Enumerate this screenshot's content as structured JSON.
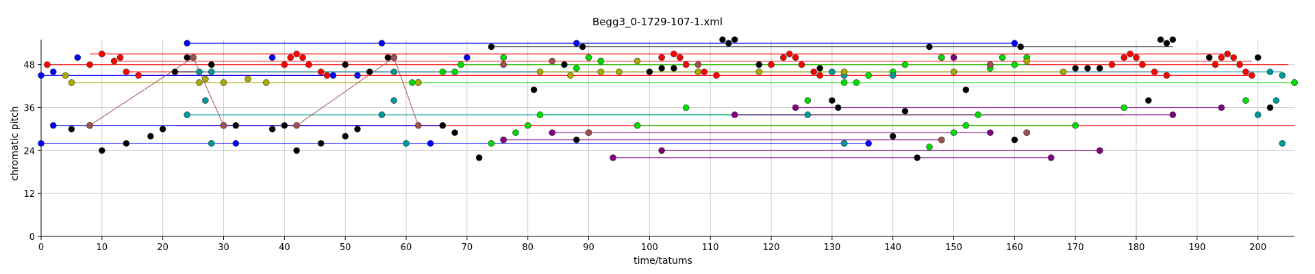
{
  "chart_data": {
    "type": "scatter",
    "title": "Begg3_0-1729-107-1.xml",
    "xlabel": "time/tatums",
    "ylabel": "chromatic pitch",
    "xlim": [
      0,
      206
    ],
    "ylim": [
      0,
      55
    ],
    "xticks": [
      0,
      10,
      20,
      30,
      40,
      50,
      60,
      70,
      80,
      90,
      100,
      110,
      120,
      130,
      140,
      150,
      160,
      170,
      180,
      190,
      200
    ],
    "yticks": [
      0,
      12,
      24,
      36,
      48
    ],
    "grid": true,
    "legend": "none",
    "series": [
      {
        "color": "#ff0000",
        "points": [
          [
            1,
            48
          ],
          [
            8,
            48
          ],
          [
            10,
            51
          ],
          [
            12,
            49
          ],
          [
            13,
            50
          ],
          [
            14,
            46
          ],
          [
            16,
            45
          ],
          [
            40,
            48
          ],
          [
            41,
            50
          ],
          [
            42,
            51
          ],
          [
            43,
            50
          ],
          [
            44,
            48
          ],
          [
            46,
            46
          ],
          [
            47,
            45
          ],
          [
            102,
            50
          ],
          [
            104,
            51
          ],
          [
            105,
            50
          ],
          [
            106,
            48
          ],
          [
            109,
            46
          ],
          [
            111,
            45
          ],
          [
            120,
            48
          ],
          [
            122,
            50
          ],
          [
            123,
            51
          ],
          [
            124,
            50
          ],
          [
            125,
            48
          ],
          [
            127,
            46
          ],
          [
            128,
            45
          ],
          [
            176,
            48
          ],
          [
            178,
            50
          ],
          [
            179,
            51
          ],
          [
            180,
            50
          ],
          [
            181,
            48
          ],
          [
            183,
            46
          ],
          [
            185,
            45
          ],
          [
            193,
            48
          ],
          [
            194,
            50
          ],
          [
            195,
            51
          ],
          [
            196,
            50
          ],
          [
            197,
            48
          ],
          [
            198,
            46
          ],
          [
            199,
            45
          ]
        ],
        "lines": [
          [
            1,
            48,
            205,
            48
          ],
          [
            8,
            51,
            195,
            51
          ],
          [
            12,
            49,
            199,
            49
          ],
          [
            14,
            46,
            185,
            46
          ],
          [
            16,
            45,
            199,
            45
          ],
          [
            22,
            31,
            206,
            31
          ]
        ]
      },
      {
        "color": "#0000ff",
        "points": [
          [
            0,
            45
          ],
          [
            2,
            46
          ],
          [
            6,
            50
          ],
          [
            2,
            31
          ],
          [
            24,
            54
          ],
          [
            56,
            54
          ],
          [
            88,
            54
          ],
          [
            160,
            54
          ],
          [
            38,
            50
          ],
          [
            48,
            45
          ],
          [
            52,
            45
          ],
          [
            66,
            31
          ],
          [
            70,
            50
          ],
          [
            0,
            26
          ],
          [
            32,
            26
          ],
          [
            64,
            26
          ],
          [
            136,
            26
          ]
        ],
        "lines": [
          [
            24,
            54,
            160,
            54
          ],
          [
            0,
            26,
            136,
            26
          ],
          [
            2,
            31,
            66,
            31
          ],
          [
            0,
            45,
            48,
            45
          ]
        ]
      },
      {
        "color": "#000000",
        "points": [
          [
            5,
            30
          ],
          [
            8,
            31
          ],
          [
            10,
            24
          ],
          [
            14,
            26
          ],
          [
            18,
            28
          ],
          [
            20,
            30
          ],
          [
            22,
            46
          ],
          [
            24,
            50
          ],
          [
            25,
            50
          ],
          [
            28,
            48
          ],
          [
            30,
            31
          ],
          [
            32,
            31
          ],
          [
            38,
            30
          ],
          [
            40,
            31
          ],
          [
            42,
            24
          ],
          [
            46,
            26
          ],
          [
            50,
            28
          ],
          [
            50,
            48
          ],
          [
            52,
            30
          ],
          [
            54,
            46
          ],
          [
            57,
            50
          ],
          [
            58,
            50
          ],
          [
            66,
            31
          ],
          [
            68,
            29
          ],
          [
            72,
            22
          ],
          [
            74,
            53
          ],
          [
            81,
            41
          ],
          [
            86,
            48
          ],
          [
            88,
            27
          ],
          [
            89,
            53
          ],
          [
            92,
            49
          ],
          [
            100,
            46
          ],
          [
            102,
            47
          ],
          [
            104,
            47
          ],
          [
            112,
            55
          ],
          [
            113,
            54
          ],
          [
            114,
            55
          ],
          [
            118,
            48
          ],
          [
            128,
            47
          ],
          [
            130,
            38
          ],
          [
            131,
            36
          ],
          [
            132,
            26
          ],
          [
            140,
            28
          ],
          [
            142,
            35
          ],
          [
            144,
            22
          ],
          [
            146,
            53
          ],
          [
            148,
            50
          ],
          [
            152,
            41
          ],
          [
            156,
            48
          ],
          [
            160,
            27
          ],
          [
            161,
            53
          ],
          [
            162,
            29
          ],
          [
            170,
            47
          ],
          [
            172,
            47
          ],
          [
            174,
            47
          ],
          [
            182,
            38
          ],
          [
            184,
            55
          ],
          [
            185,
            54
          ],
          [
            186,
            55
          ],
          [
            192,
            50
          ],
          [
            200,
            50
          ],
          [
            202,
            36
          ],
          [
            206,
            43
          ]
        ],
        "lines": [
          [
            22,
            46,
            162,
            46
          ],
          [
            74,
            53,
            186,
            53
          ]
        ]
      },
      {
        "color": "#00dd00",
        "points": [
          [
            61,
            43
          ],
          [
            62,
            43
          ],
          [
            66,
            46
          ],
          [
            68,
            46
          ],
          [
            69,
            48
          ],
          [
            74,
            26
          ],
          [
            76,
            50
          ],
          [
            78,
            29
          ],
          [
            80,
            31
          ],
          [
            82,
            34
          ],
          [
            88,
            47
          ],
          [
            90,
            50
          ],
          [
            92,
            49
          ],
          [
            98,
            31
          ],
          [
            106,
            36
          ],
          [
            126,
            38
          ],
          [
            132,
            43
          ],
          [
            134,
            43
          ],
          [
            136,
            45
          ],
          [
            140,
            46
          ],
          [
            142,
            48
          ],
          [
            146,
            25
          ],
          [
            148,
            50
          ],
          [
            150,
            29
          ],
          [
            152,
            31
          ],
          [
            154,
            34
          ],
          [
            156,
            47
          ],
          [
            158,
            50
          ],
          [
            160,
            48
          ],
          [
            162,
            50
          ],
          [
            170,
            31
          ],
          [
            178,
            36
          ],
          [
            198,
            38
          ],
          [
            206,
            43
          ]
        ],
        "lines": [
          [
            61,
            43,
            206,
            43
          ],
          [
            69,
            48,
            162,
            48
          ],
          [
            82,
            34,
            178,
            34
          ],
          [
            98,
            31,
            170,
            31
          ]
        ]
      },
      {
        "color": "#009999",
        "points": [
          [
            24,
            34
          ],
          [
            26,
            46
          ],
          [
            27,
            38
          ],
          [
            28,
            46
          ],
          [
            28,
            26
          ],
          [
            56,
            34
          ],
          [
            58,
            46
          ],
          [
            58,
            38
          ],
          [
            60,
            26
          ],
          [
            126,
            34
          ],
          [
            130,
            46
          ],
          [
            132,
            45
          ],
          [
            132,
            26
          ],
          [
            140,
            45
          ],
          [
            200,
            34
          ],
          [
            202,
            46
          ],
          [
            203,
            38
          ],
          [
            204,
            45
          ],
          [
            204,
            26
          ]
        ],
        "lines": [
          [
            26,
            46,
            204,
            46
          ],
          [
            24,
            34,
            126,
            34
          ]
        ]
      },
      {
        "color": "#aaaa00",
        "points": [
          [
            4,
            45
          ],
          [
            5,
            43
          ],
          [
            26,
            43
          ],
          [
            27,
            44
          ],
          [
            30,
            43
          ],
          [
            34,
            44
          ],
          [
            37,
            43
          ],
          [
            62,
            43
          ],
          [
            82,
            46
          ],
          [
            87,
            45
          ],
          [
            92,
            46
          ],
          [
            95,
            46
          ],
          [
            98,
            49
          ],
          [
            108,
            46
          ],
          [
            118,
            46
          ],
          [
            132,
            46
          ],
          [
            150,
            46
          ],
          [
            162,
            49
          ],
          [
            168,
            46
          ]
        ],
        "lines": [
          [
            5,
            43,
            62,
            43
          ],
          [
            82,
            46,
            168,
            46
          ]
        ]
      },
      {
        "color": "#800080",
        "points": [
          [
            76,
            27
          ],
          [
            76,
            27
          ],
          [
            84,
            29
          ],
          [
            94,
            22
          ],
          [
            90,
            29
          ],
          [
            102,
            24
          ],
          [
            114,
            34
          ],
          [
            124,
            36
          ],
          [
            148,
            27
          ],
          [
            156,
            29
          ],
          [
            166,
            22
          ],
          [
            174,
            24
          ],
          [
            186,
            34
          ],
          [
            194,
            36
          ],
          [
            150,
            50
          ]
        ],
        "lines": [
          [
            76,
            27,
            148,
            27
          ],
          [
            84,
            29,
            156,
            29
          ],
          [
            94,
            22,
            166,
            22
          ],
          [
            102,
            24,
            174,
            24
          ],
          [
            114,
            34,
            186,
            34
          ],
          [
            124,
            36,
            194,
            36
          ]
        ]
      },
      {
        "color": "#a05050",
        "points": [
          [
            8,
            31
          ],
          [
            25,
            50
          ],
          [
            30,
            31
          ],
          [
            42,
            31
          ],
          [
            58,
            50
          ],
          [
            62,
            31
          ],
          [
            76,
            48
          ],
          [
            84,
            49
          ],
          [
            90,
            29
          ],
          [
            108,
            48
          ],
          [
            148,
            27
          ],
          [
            156,
            48
          ],
          [
            162,
            29
          ]
        ],
        "lines": [
          [
            8,
            31,
            25,
            50
          ],
          [
            25,
            50,
            30,
            31
          ],
          [
            42,
            31,
            58,
            50
          ],
          [
            58,
            50,
            62,
            31
          ]
        ]
      }
    ]
  }
}
